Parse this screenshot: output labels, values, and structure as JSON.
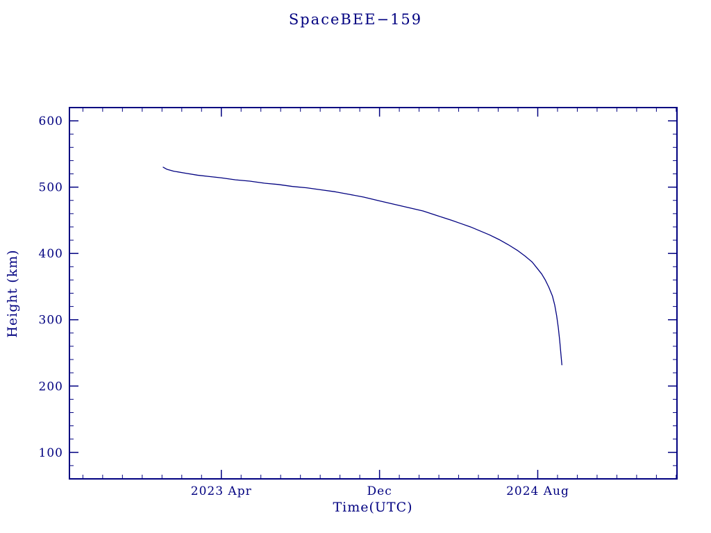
{
  "page": {
    "background": "#ffffff",
    "accent_color": "#000080"
  },
  "chart_data": {
    "type": "line",
    "title": "SpaceBEE−159",
    "xlabel": "Time(UTC)",
    "ylabel": "Height (km)",
    "grid": false,
    "legend": false,
    "x_axis": {
      "unit": "decimal_year",
      "range": [
        2022.61,
        2025.17
      ],
      "major_ticks": [
        {
          "value": 2023.25,
          "label": "2023 Apr"
        },
        {
          "value": 2023.9167,
          "label": "Dec"
        },
        {
          "value": 2024.5833,
          "label": "2024 Aug"
        }
      ],
      "minor_ticks_per_month": true
    },
    "y_axis": {
      "unit": "km",
      "range": [
        60,
        620
      ],
      "major_ticks": [
        {
          "value": 100,
          "label": "100"
        },
        {
          "value": 200,
          "label": "200"
        },
        {
          "value": 300,
          "label": "300"
        },
        {
          "value": 400,
          "label": "400"
        },
        {
          "value": 500,
          "label": "500"
        },
        {
          "value": 600,
          "label": "600"
        }
      ],
      "minor_tick_step": 20
    },
    "series": [
      {
        "name": "SpaceBEE-159 height",
        "color": "#000080",
        "points": [
          [
            2023.005,
            530
          ],
          [
            2023.02,
            527
          ],
          [
            2023.05,
            524
          ],
          [
            2023.1,
            521
          ],
          [
            2023.15,
            518
          ],
          [
            2023.2,
            516
          ],
          [
            2023.25,
            514
          ],
          [
            2023.31,
            511
          ],
          [
            2023.37,
            509
          ],
          [
            2023.43,
            506
          ],
          [
            2023.49,
            504
          ],
          [
            2023.55,
            501
          ],
          [
            2023.61,
            499
          ],
          [
            2023.67,
            496
          ],
          [
            2023.73,
            493
          ],
          [
            2023.79,
            489
          ],
          [
            2023.85,
            485
          ],
          [
            2023.92,
            479
          ],
          [
            2023.98,
            474
          ],
          [
            2024.04,
            469
          ],
          [
            2024.1,
            464
          ],
          [
            2024.16,
            457
          ],
          [
            2024.22,
            450
          ],
          [
            2024.26,
            445
          ],
          [
            2024.3,
            440
          ],
          [
            2024.34,
            434
          ],
          [
            2024.38,
            428
          ],
          [
            2024.42,
            421
          ],
          [
            2024.46,
            413
          ],
          [
            2024.5,
            404
          ],
          [
            2024.53,
            396
          ],
          [
            2024.56,
            387
          ],
          [
            2024.58,
            378
          ],
          [
            2024.6,
            369
          ],
          [
            2024.615,
            360
          ],
          [
            2024.63,
            349
          ],
          [
            2024.645,
            336
          ],
          [
            2024.655,
            322
          ],
          [
            2024.663,
            306
          ],
          [
            2024.67,
            288
          ],
          [
            2024.676,
            268
          ],
          [
            2024.681,
            248
          ],
          [
            2024.685,
            232
          ]
        ]
      }
    ]
  }
}
